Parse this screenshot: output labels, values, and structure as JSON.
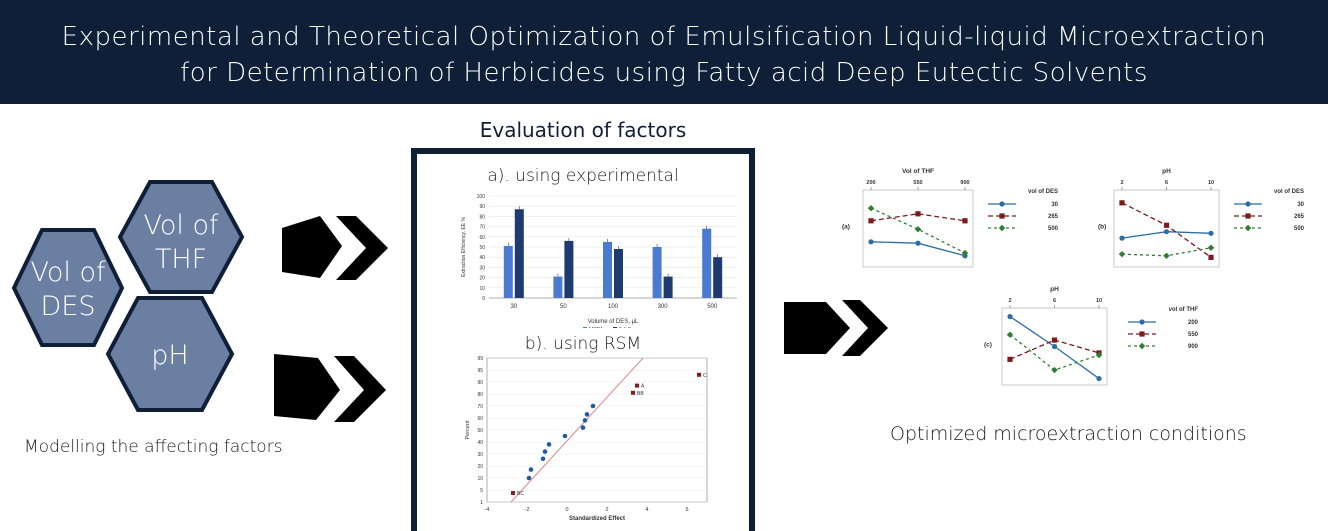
{
  "header": {
    "title_line1": "Experimental and Theoretical Optimization of Emulsification Liquid-liquid Microextraction",
    "title_line2": "for Determination of Herbicides using Fatty acid Deep Eutectic Solvents",
    "bg_color": "#0f1f38"
  },
  "factors": {
    "hex1_line1": "Vol of",
    "hex1_line2": "DES",
    "hex2_line1": "Vol of",
    "hex2_line2": "THF",
    "hex3": "pH",
    "caption": "Modelling the affecting factors",
    "hex_color": "#6b7fa3"
  },
  "evaluation": {
    "title": "Evaluation of factors",
    "sub_a": "a). using experimental",
    "sub_b": "b). using RSM"
  },
  "result": {
    "caption": "Optimized microextraction conditions"
  },
  "chart_data": [
    {
      "type": "bar",
      "categories": [
        "30",
        "50",
        "100",
        "300",
        "500"
      ],
      "series": [
        {
          "name": "MCPA",
          "values": [
            51,
            21,
            55,
            50,
            68
          ],
          "color": "#4a7bd0"
        },
        {
          "name": "2,4-D",
          "values": [
            87,
            56,
            48,
            21,
            40
          ],
          "color": "#1f3a6e"
        }
      ],
      "ylim": [
        0,
        100
      ],
      "yticks": [
        "0",
        "10",
        "20",
        "30",
        "40",
        "50",
        "60",
        "70",
        "80",
        "90",
        "100"
      ],
      "xlabel": "Volume of DES, µL",
      "ylabel": "Extraction Efficiency, EE %"
    },
    {
      "type": "scatter",
      "xlabel": "Standardized Effect",
      "ylabel": "Percent",
      "xticks": [
        "-4",
        "-2",
        "0",
        "2",
        "4",
        "6"
      ],
      "yticks": [
        "1",
        "5",
        "10",
        "20",
        "30",
        "40",
        "50",
        "60",
        "70",
        "80",
        "90",
        "95",
        "99"
      ],
      "xlim": [
        -4,
        7
      ],
      "points_normal": [
        {
          "x": -1.9,
          "p": 10
        },
        {
          "x": -1.8,
          "p": 17
        },
        {
          "x": -1.2,
          "p": 26
        },
        {
          "x": -1.1,
          "p": 32
        },
        {
          "x": -0.9,
          "p": 38
        },
        {
          "x": -0.1,
          "p": 45
        },
        {
          "x": 0.8,
          "p": 52
        },
        {
          "x": 0.9,
          "p": 58
        },
        {
          "x": 1.0,
          "p": 63
        },
        {
          "x": 1.3,
          "p": 70
        }
      ],
      "points_significant": [
        {
          "x": -2.7,
          "p": 4,
          "label": "BC"
        },
        {
          "x": 3.3,
          "p": 81,
          "label": "BB"
        },
        {
          "x": 3.5,
          "p": 87,
          "label": "A"
        },
        {
          "x": 6.6,
          "p": 93,
          "label": "C"
        }
      ]
    },
    {
      "type": "line",
      "panel_label": "(a)",
      "title": "Vol of THF",
      "categories": [
        "200",
        "550",
        "900"
      ],
      "legend_title": "vol of DES",
      "series": [
        {
          "name": "30",
          "values": [
            33,
            32,
            23
          ],
          "color": "#2e6da4",
          "marker": "circle",
          "dash": ""
        },
        {
          "name": "265",
          "values": [
            48,
            53,
            48
          ],
          "color": "#7b1c1c",
          "marker": "square",
          "dash": "5,3"
        },
        {
          "name": "500",
          "values": [
            57,
            42,
            25
          ],
          "color": "#2e7d32",
          "marker": "diamond",
          "dash": "3,3"
        }
      ],
      "ylim": [
        15,
        70
      ]
    },
    {
      "type": "line",
      "panel_label": "(b)",
      "title": "pH",
      "categories": [
        "2",
        "6",
        "10"
      ],
      "legend_title": "vol of DES",
      "series": [
        {
          "name": "30",
          "values": [
            48,
            52,
            51
          ],
          "color": "#2e6da4",
          "marker": "circle",
          "dash": ""
        },
        {
          "name": "265",
          "values": [
            70,
            56,
            36
          ],
          "color": "#7b1c1c",
          "marker": "square",
          "dash": "5,3"
        },
        {
          "name": "500",
          "values": [
            38,
            37,
            42
          ],
          "color": "#2e7d32",
          "marker": "diamond",
          "dash": "3,3"
        }
      ],
      "ylim": [
        30,
        78
      ]
    },
    {
      "type": "line",
      "panel_label": "(c)",
      "title": "pH",
      "categories": [
        "2",
        "6",
        "10"
      ],
      "legend_title": "vol of THF",
      "series": [
        {
          "name": "200",
          "values": [
            72,
            44,
            14
          ],
          "color": "#2e6da4",
          "marker": "circle",
          "dash": ""
        },
        {
          "name": "550",
          "values": [
            32,
            50,
            38
          ],
          "color": "#7b1c1c",
          "marker": "square",
          "dash": "5,3"
        },
        {
          "name": "900",
          "values": [
            55,
            22,
            36
          ],
          "color": "#2e7d32",
          "marker": "diamond",
          "dash": "3,3"
        }
      ],
      "ylim": [
        8,
        80
      ]
    }
  ]
}
